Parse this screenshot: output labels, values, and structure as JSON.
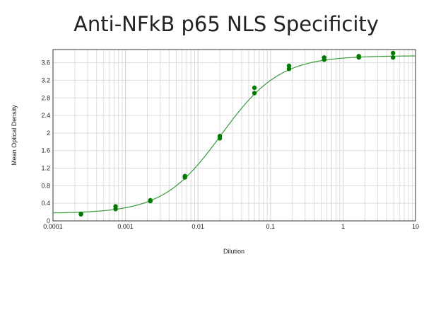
{
  "chart_data": {
    "type": "scatter",
    "title": "Anti-NFkB p65 NLS Specificity",
    "xlabel": "Dilution",
    "ylabel": "Mean Optical Density",
    "xscale": "log",
    "xlim": [
      0.0001,
      10
    ],
    "ylim": [
      0,
      3.9
    ],
    "grid": true,
    "x_ticks": [
      "0.0001",
      "0.001",
      "0.01",
      "0.1",
      "1",
      "10"
    ],
    "y_ticks": [
      "0",
      "0.4",
      "0.8",
      "1.2",
      "1.6",
      "2",
      "2.4",
      "2.8",
      "3.2",
      "3.6"
    ],
    "colors": {
      "points": "#007a00",
      "curve": "#3a9a3a",
      "grid": "#dcdcdc"
    },
    "points": [
      {
        "x": 0.000243,
        "y": [
          0.15,
          0.16
        ]
      },
      {
        "x": 0.00073,
        "y": [
          0.33,
          0.27
        ]
      },
      {
        "x": 0.0022,
        "y": [
          0.47,
          0.45
        ]
      },
      {
        "x": 0.0066,
        "y": [
          1.02,
          0.99
        ]
      },
      {
        "x": 0.02,
        "y": [
          1.93,
          1.88
        ]
      },
      {
        "x": 0.06,
        "y": [
          3.03,
          2.91
        ]
      },
      {
        "x": 0.18,
        "y": [
          3.53,
          3.46
        ]
      },
      {
        "x": 0.55,
        "y": [
          3.72,
          3.67
        ]
      },
      {
        "x": 1.65,
        "y": [
          3.75,
          3.72
        ]
      },
      {
        "x": 4.9,
        "y": [
          3.82,
          3.72
        ]
      }
    ],
    "fit": {
      "model": "4PL",
      "bottom": 0.17,
      "top": 3.76,
      "ec50": 0.021,
      "hill": 1.08
    }
  }
}
